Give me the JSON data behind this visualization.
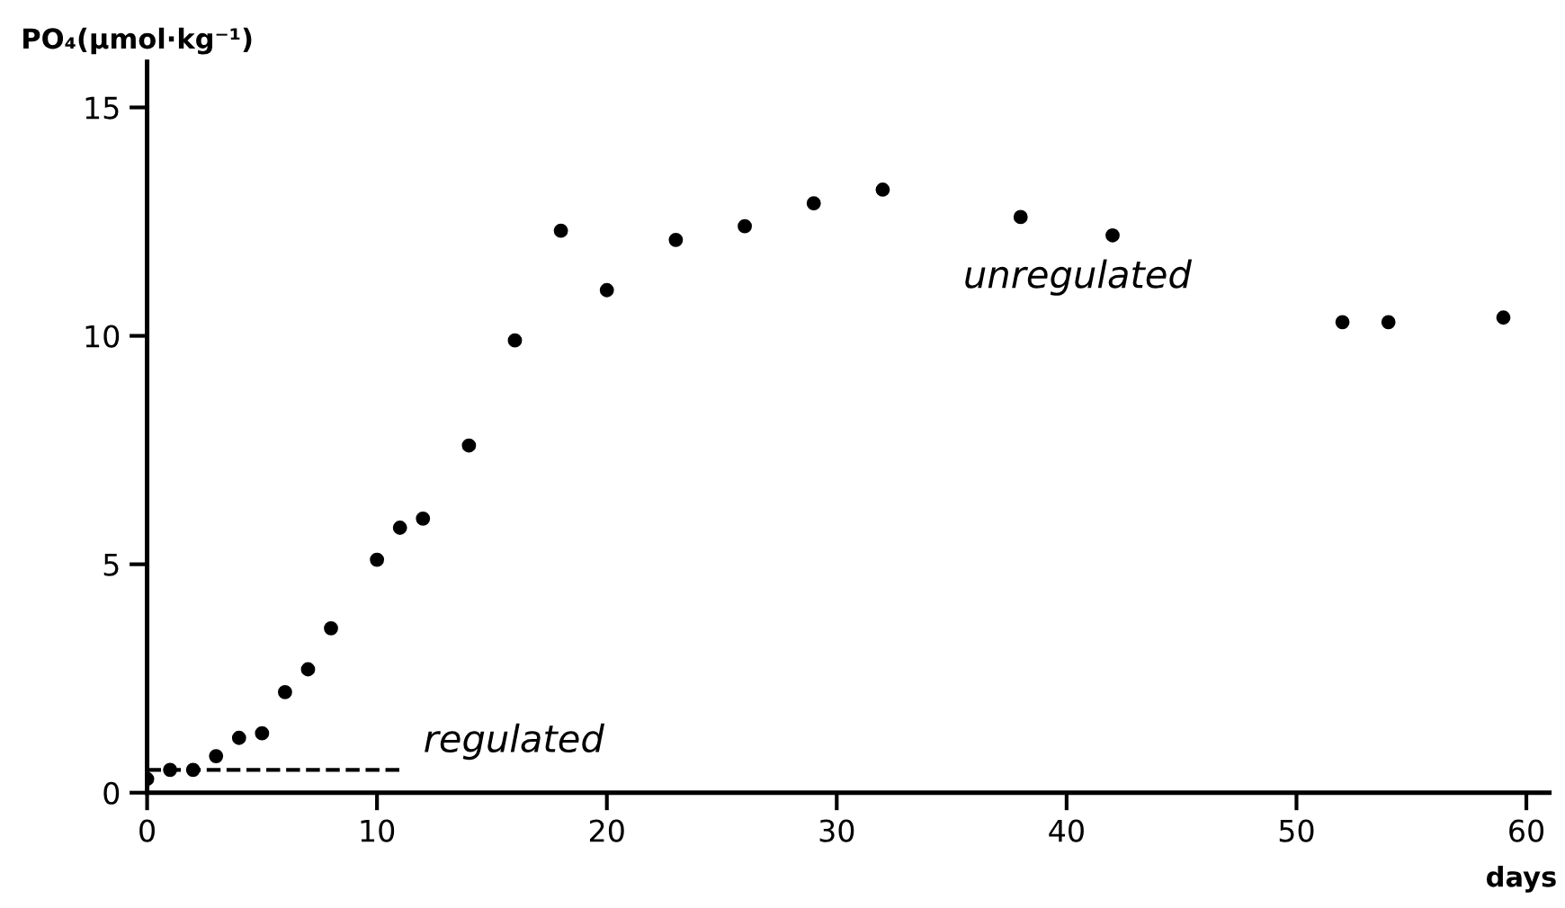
{
  "chart_data": {
    "type": "scatter",
    "xlabel": "days",
    "ylabel": "PO₄(µmol·kg⁻¹)",
    "xlim": [
      0,
      61
    ],
    "ylim": [
      0,
      16
    ],
    "xticks": [
      0,
      10,
      20,
      30,
      40,
      50,
      60
    ],
    "yticks": [
      0,
      5,
      10,
      15
    ],
    "grid": false,
    "marker": "circle",
    "series": [
      {
        "color": "#000000",
        "x": [
          0,
          1,
          2,
          3,
          4,
          5,
          6,
          7,
          8,
          10,
          11,
          12,
          14,
          16,
          18,
          20,
          23,
          26,
          29,
          32,
          38,
          42,
          52,
          54,
          59
        ],
        "values": [
          0.3,
          0.5,
          0.5,
          0.8,
          1.2,
          1.3,
          2.2,
          2.7,
          3.6,
          5.1,
          5.8,
          6.0,
          7.6,
          9.9,
          12.3,
          11.0,
          12.1,
          12.4,
          12.9,
          13.2,
          12.6,
          12.2,
          10.3,
          10.3,
          10.4
        ]
      },
      {
        "type": "line",
        "line_style": "dashed",
        "marker": "none",
        "color": "#000000",
        "x": [
          0,
          11
        ],
        "values": [
          0.5,
          0.5
        ]
      }
    ],
    "annotations": [
      "regulated",
      "unregulated"
    ]
  }
}
